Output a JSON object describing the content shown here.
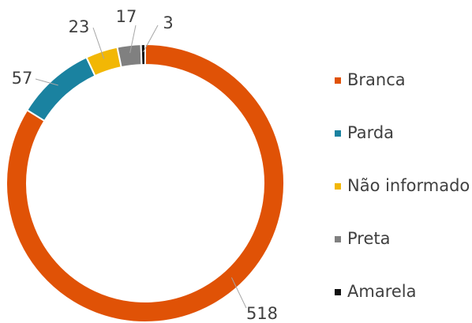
{
  "chart_data": {
    "type": "pie",
    "donut": true,
    "categories": [
      "Branca",
      "Parda",
      "Não informado",
      "Preta",
      "Amarela"
    ],
    "values": [
      518,
      57,
      23,
      17,
      3
    ],
    "colors": [
      "#e05206",
      "#1a82a0",
      "#f2b705",
      "#808080",
      "#111111"
    ],
    "legend": "right"
  }
}
